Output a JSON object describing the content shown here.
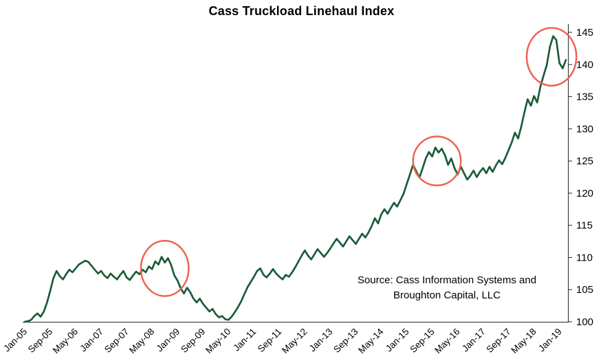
{
  "title": "Cass Truckload Linehaul Index",
  "source_note": {
    "line1": "Source: Cass Information Systems and",
    "line2": "Broughton Capital, LLC"
  },
  "chart_data": {
    "type": "line",
    "title": "Cass Truckload Linehaul Index",
    "x_unit": "month",
    "x_start": "Jan-05",
    "x_end": "Mar-19",
    "x_tick_labels": [
      "Jan-05",
      "Sep-05",
      "May-06",
      "Jan-07",
      "Sep-07",
      "May-08",
      "Jan-09",
      "Sep-09",
      "May-10",
      "Jan-11",
      "Sep-11",
      "May-12",
      "Jan-13",
      "Sep-13",
      "May-14",
      "Jan-15",
      "Sep-15",
      "May-16",
      "Jan-17",
      "Sep-17",
      "May-18",
      "Jan-19"
    ],
    "x_tick_interval_months": 8,
    "values": [
      100.0,
      100.1,
      100.3,
      100.9,
      101.3,
      100.8,
      101.6,
      103.0,
      104.8,
      106.8,
      107.9,
      107.1,
      106.6,
      107.4,
      108.1,
      107.7,
      108.3,
      108.9,
      109.2,
      109.5,
      109.3,
      108.7,
      108.1,
      107.5,
      107.9,
      107.2,
      106.8,
      107.5,
      107.0,
      106.6,
      107.3,
      107.9,
      106.9,
      106.5,
      107.2,
      107.8,
      107.4,
      108.1,
      107.7,
      108.6,
      108.2,
      109.4,
      108.9,
      110.1,
      109.2,
      109.9,
      108.8,
      107.2,
      106.4,
      105.2,
      104.4,
      105.3,
      104.6,
      103.6,
      103.0,
      103.6,
      102.8,
      102.2,
      101.6,
      102.0,
      101.2,
      100.7,
      100.9,
      100.4,
      100.3,
      100.8,
      101.5,
      102.3,
      103.2,
      104.3,
      105.4,
      106.2,
      107.0,
      107.9,
      108.3,
      107.3,
      106.9,
      107.5,
      108.2,
      107.5,
      107.0,
      106.6,
      107.3,
      107.0,
      107.7,
      108.5,
      109.4,
      110.3,
      111.1,
      110.3,
      109.7,
      110.5,
      111.3,
      110.7,
      110.1,
      110.7,
      111.4,
      112.2,
      112.9,
      112.3,
      111.7,
      112.5,
      113.3,
      112.7,
      112.1,
      112.9,
      113.7,
      113.1,
      113.9,
      114.9,
      116.1,
      115.3,
      116.7,
      117.5,
      116.8,
      117.7,
      118.5,
      117.9,
      118.9,
      119.9,
      121.4,
      122.9,
      124.4,
      123.4,
      122.4,
      123.9,
      125.4,
      126.4,
      125.7,
      127.1,
      126.3,
      126.9,
      125.9,
      124.4,
      125.4,
      123.9,
      122.9,
      124.1,
      123.1,
      122.1,
      122.7,
      123.5,
      122.5,
      123.3,
      123.9,
      123.1,
      124.1,
      123.3,
      124.3,
      125.1,
      124.5,
      125.5,
      126.7,
      127.9,
      129.4,
      128.5,
      130.4,
      132.6,
      134.6,
      133.6,
      135.1,
      134.1,
      136.6,
      138.3,
      139.9,
      142.8,
      144.4,
      143.8,
      140.2,
      139.4,
      140.7
    ],
    "ylim": [
      100,
      145
    ],
    "y_ticks": [
      100,
      105,
      110,
      115,
      120,
      125,
      130,
      135,
      140,
      145
    ],
    "grid": false,
    "legend": "none",
    "line_color": "#1a5c38",
    "annotation_color": "#ee6352",
    "annotations": [
      {
        "shape": "ellipse",
        "cx_month_index": 44.0,
        "cy_value": 108.3,
        "rx_months": 7.5,
        "ry_values": 4.3
      },
      {
        "shape": "ellipse",
        "cx_month_index": 129.5,
        "cy_value": 125.0,
        "rx_months": 7.5,
        "ry_values": 3.8
      },
      {
        "shape": "ellipse",
        "cx_month_index": 165.5,
        "cy_value": 141.2,
        "rx_months": 7.8,
        "ry_values": 4.5
      }
    ],
    "source": "Source: Cass Information Systems and Broughton Capital, LLC"
  }
}
